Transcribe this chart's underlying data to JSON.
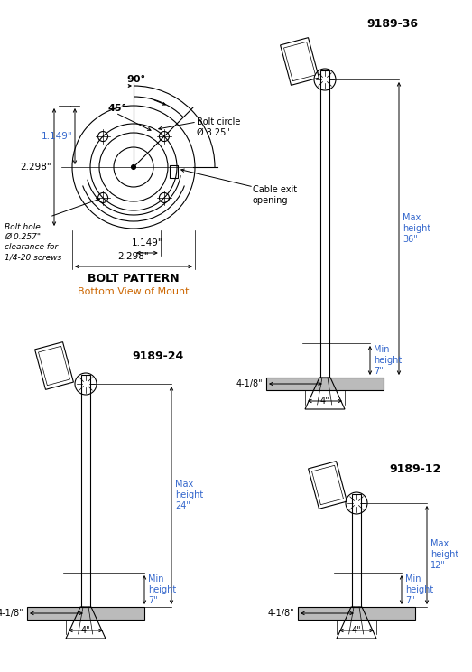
{
  "bg_color": "#ffffff",
  "line_color": "#000000",
  "orange_color": "#cc6600",
  "blue_color": "#3366cc",
  "title_bolt": "BOLT PATTERN",
  "subtitle_bolt": "Bottom View of Mount",
  "label_9189_36": "9189-36",
  "label_9189_24": "9189-24",
  "label_9189_12": "9189-12",
  "bolt_circle_label": "Bolt circle\nØ 3.25\"",
  "cable_exit_label": "Cable exit\nopening",
  "bolt_hole_label": "Bolt hole\nØ 0.257\"\nclearance for\n1/4-20 screws",
  "dim_90": "90°",
  "dim_45": "45°",
  "dim_2298": "2.298\"",
  "dim_1149a": "1.149\"",
  "dim_1149b": "1.149\"",
  "label_4_118": "4-1/8\"",
  "label_4": "4\"",
  "max36": "Max\nheight\n36\"",
  "min7": "Min\nheight\n7\"",
  "max24": "Max\nheight\n24\"",
  "max12": "Max\nheight\n12\""
}
